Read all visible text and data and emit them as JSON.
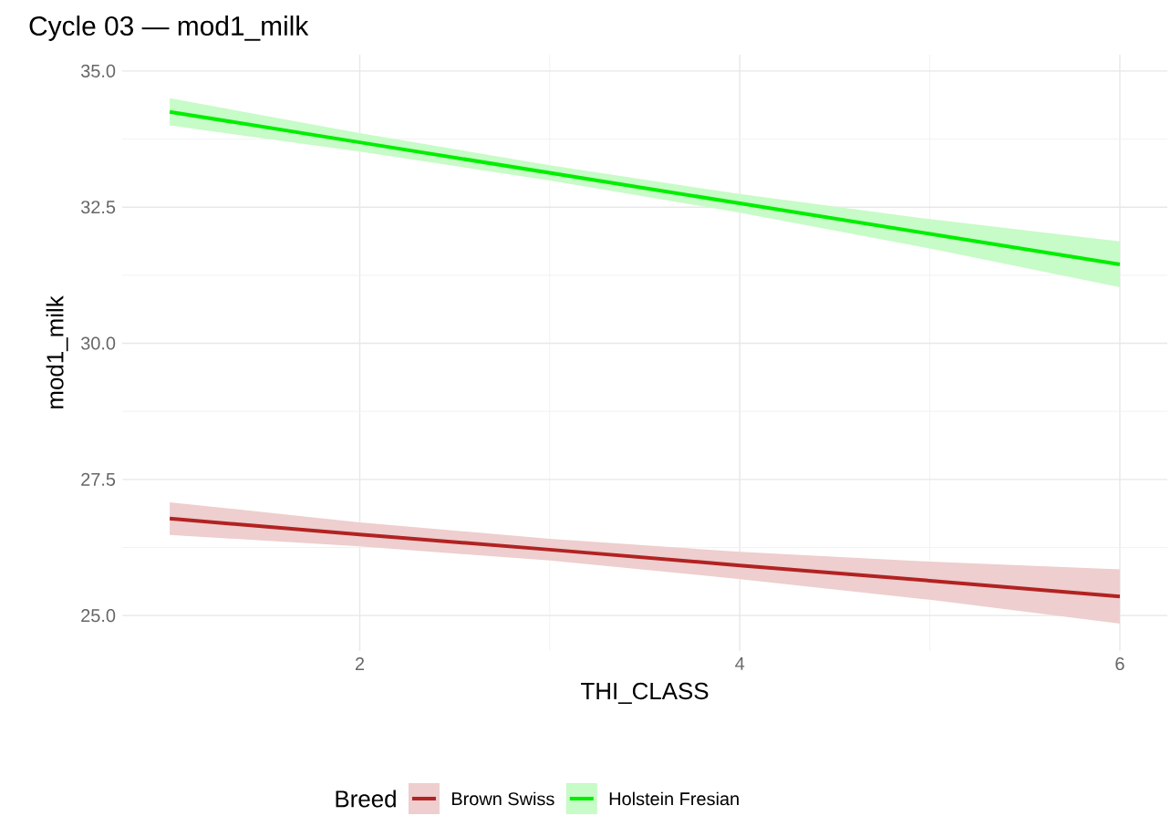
{
  "chart_data": {
    "type": "line",
    "title": "Cycle 03 — mod1_milk",
    "xlabel": "THI_CLASS",
    "ylabel": "mod1_milk",
    "legend_title": "Breed",
    "legend": "bottom",
    "grid": true,
    "x": [
      1,
      2,
      3,
      4,
      5,
      6
    ],
    "xlim": [
      0.75,
      6.25
    ],
    "ylim": [
      24.35,
      35.3
    ],
    "xticks": [
      2,
      4,
      6
    ],
    "yticks": [
      {
        "value": 25,
        "label": "25.0"
      },
      {
        "value": 27.5,
        "label": "27.5"
      },
      {
        "value": 30,
        "label": "30.0"
      },
      {
        "value": 32.5,
        "label": "32.5"
      },
      {
        "value": 35,
        "label": "35.0"
      }
    ],
    "series": [
      {
        "name": "Brown Swiss",
        "color": "#b22222",
        "values": [
          26.78,
          26.49,
          26.21,
          25.92,
          25.64,
          25.35
        ],
        "lower": [
          26.48,
          26.27,
          26.01,
          25.67,
          25.29,
          24.85
        ],
        "upper": [
          27.08,
          26.71,
          26.41,
          26.17,
          25.99,
          25.85
        ]
      },
      {
        "name": "Holstein Fresian",
        "color": "#00ee00",
        "values": [
          34.25,
          33.69,
          33.13,
          32.57,
          32.01,
          31.45
        ],
        "lower": [
          34.0,
          33.52,
          32.99,
          32.4,
          31.74,
          31.03
        ],
        "upper": [
          34.5,
          33.86,
          33.27,
          32.74,
          32.28,
          31.87
        ]
      }
    ]
  }
}
